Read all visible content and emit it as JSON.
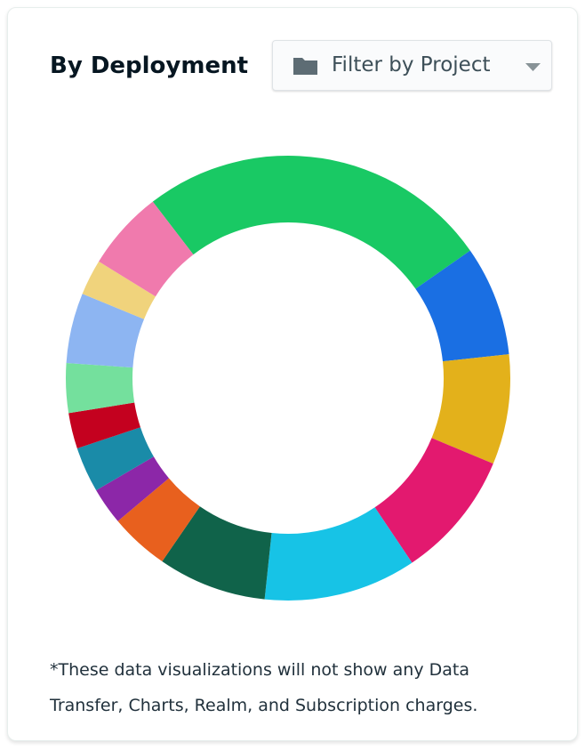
{
  "chart_data": {
    "type": "donut",
    "title": "By Deployment",
    "categories": [
      null,
      null,
      null,
      null,
      null,
      null,
      null,
      null,
      null,
      null,
      null,
      null,
      null,
      null
    ],
    "values": [
      25.7,
      8.0,
      8.0,
      9.3,
      11.1,
      7.9,
      4.3,
      2.7,
      3.3,
      2.6,
      3.6,
      5.1,
      2.6,
      5.8
    ],
    "colors": [
      "#19c964",
      "#1a6fe3",
      "#e3b11b",
      "#e3196f",
      "#17c3e6",
      "#10634a",
      "#e8601e",
      "#8c27a8",
      "#1a8ba8",
      "#c4011f",
      "#74e09d",
      "#8db5f2",
      "#f0d37c",
      "#f07aad"
    ]
  },
  "filter_button": {
    "label": "Filter by Project"
  },
  "footnote": "*These data visualizations will not show any Data Transfer, Charts, Realm, and Subscription charges."
}
